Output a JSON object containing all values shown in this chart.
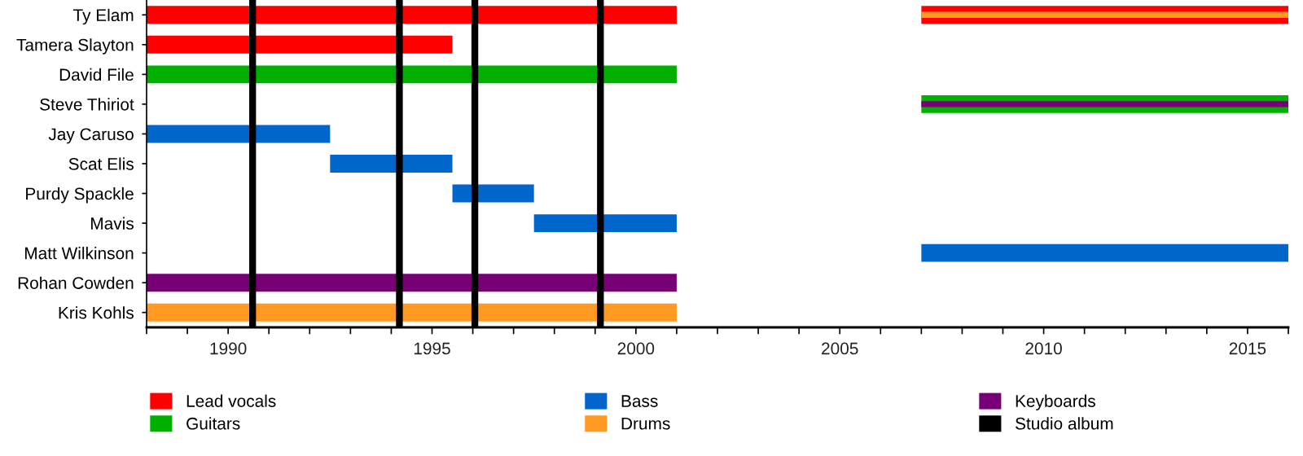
{
  "chart_data": {
    "type": "bar",
    "orientation": "horizontal",
    "categories": [
      "Ty Elam",
      "Tamera Slayton",
      "David File",
      "Steve Thiriot",
      "Jay Caruso",
      "Scat Elis",
      "Purdy Spackle",
      "Mavis",
      "Matt Wilkinson",
      "Rohan Cowden",
      "Kris Kohls"
    ],
    "series": [
      {
        "name": "Lead vocals",
        "color": "#ff0000",
        "values": [
          13,
          7.5,
          null,
          null,
          null,
          null,
          null,
          null,
          null,
          null,
          null
        ],
        "base": [
          1988,
          1988,
          null,
          null,
          null,
          null,
          null,
          null,
          null,
          null,
          null
        ]
      },
      {
        "color": "#ff0000",
        "values": [
          9,
          null,
          null,
          null,
          null,
          null,
          null,
          null,
          null,
          null,
          null
        ],
        "base": [
          2007,
          null,
          null,
          null,
          null,
          null,
          null,
          null,
          null,
          null,
          null
        ]
      },
      {
        "name": "Guitars",
        "color": "#00b000",
        "values": [
          null,
          null,
          13,
          9,
          null,
          null,
          null,
          null,
          null,
          null,
          null
        ],
        "base": [
          null,
          null,
          1988,
          2007,
          null,
          null,
          null,
          null,
          null,
          null,
          null
        ]
      },
      {
        "name": "Bass",
        "color": "#0066cc",
        "values": [
          null,
          null,
          null,
          null,
          4.5,
          3,
          2,
          3.5,
          9,
          null,
          null
        ],
        "base": [
          null,
          null,
          null,
          null,
          1988,
          1992.5,
          1995.5,
          1997.5,
          2007,
          null,
          null
        ]
      },
      {
        "name": "Drums",
        "color": "#ff9922",
        "values": [
          9,
          null,
          null,
          null,
          null,
          null,
          null,
          null,
          null,
          null,
          13
        ],
        "base": [
          2007,
          null,
          null,
          null,
          null,
          null,
          null,
          null,
          null,
          null,
          1988
        ]
      },
      {
        "name": "Keyboards",
        "color": "#770077",
        "values": [
          null,
          null,
          null,
          9,
          null,
          null,
          null,
          null,
          null,
          13,
          null
        ],
        "base": [
          null,
          null,
          null,
          2007,
          null,
          null,
          null,
          null,
          null,
          1988,
          null
        ]
      }
    ],
    "ref_lines": [
      {
        "axis": "x",
        "value": 1990.6,
        "label": "Studio album",
        "color": "#000000"
      },
      {
        "axis": "x",
        "value": 1994.2,
        "color": "#000000"
      },
      {
        "axis": "x",
        "value": 1996.05,
        "color": "#000000"
      },
      {
        "axis": "x",
        "value": 1999.13,
        "color": "#000000"
      }
    ],
    "xlim": [
      1988,
      2016
    ],
    "xticks": [
      {
        "value": 1988,
        "label": null
      },
      {
        "value": 1989,
        "label": null
      },
      1990,
      {
        "value": 1991,
        "label": null
      },
      {
        "value": 1992,
        "label": null
      },
      {
        "value": 1993,
        "label": null
      },
      {
        "value": 1994,
        "label": null
      },
      1995,
      {
        "value": 1996,
        "label": null
      },
      {
        "value": 1997,
        "label": null
      },
      {
        "value": 1998,
        "label": null
      },
      {
        "value": 1999,
        "label": null
      },
      2000,
      {
        "value": 2001,
        "label": null
      },
      {
        "value": 2002,
        "label": null
      },
      {
        "value": 2003,
        "label": null
      },
      {
        "value": 2004,
        "label": null
      },
      2005,
      {
        "value": 2006,
        "label": null
      },
      {
        "value": 2007,
        "label": null
      },
      {
        "value": 2008,
        "label": null
      },
      {
        "value": 2009,
        "label": null
      },
      2010,
      {
        "value": 2011,
        "label": null
      },
      {
        "value": 2012,
        "label": null
      },
      {
        "value": 2013,
        "label": null
      },
      {
        "value": 2014,
        "label": null
      },
      2015,
      {
        "value": 2016,
        "label": null
      }
    ],
    "grid": false,
    "legend": "bottom"
  }
}
